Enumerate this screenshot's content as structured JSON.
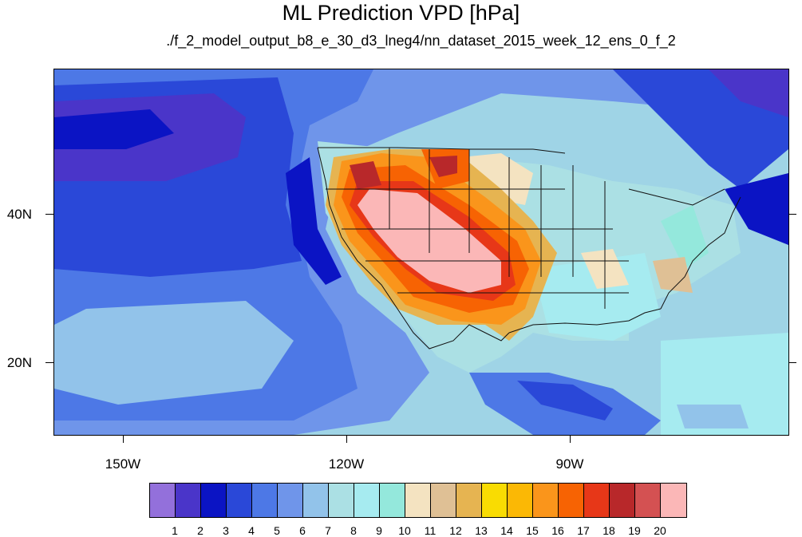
{
  "title": "ML Prediction VPD [hPa]",
  "subtitle": "./f_2_model_output_b8_e_30_d3_lneg4/nn_dataset_2015_week_12_ens_0_f_2",
  "lat_labels": [
    "40N",
    "20N"
  ],
  "lon_labels": [
    "150W",
    "120W",
    "90W"
  ],
  "colorbar": {
    "colors": [
      "#9370db",
      "#4a35c9",
      "#0b14c4",
      "#2a48d8",
      "#4d78e6",
      "#6f95ea",
      "#92c3ea",
      "#abe0e4",
      "#a6ebf0",
      "#94e8dc",
      "#f4e3c1",
      "#dfc095",
      "#e6b451",
      "#f9dc02",
      "#fbb805",
      "#fa951b",
      "#f76303",
      "#e73718",
      "#b8282a",
      "#d45152",
      "#fbb7b7"
    ],
    "labels": [
      "1",
      "2",
      "3",
      "4",
      "5",
      "6",
      "7",
      "8",
      "9",
      "10",
      "11",
      "12",
      "13",
      "14",
      "15",
      "16",
      "17",
      "18",
      "19",
      "20"
    ]
  }
}
